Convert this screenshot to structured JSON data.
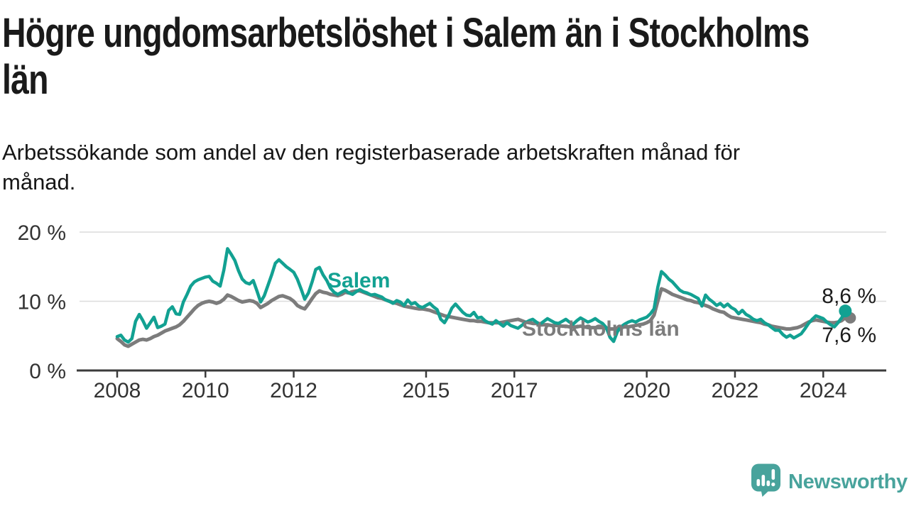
{
  "chart_data": {
    "type": "line",
    "title": "Högre ungdomsarbetslöshet i Salem än i Stockholms\nlän",
    "subtitle": "Arbetssökande som andel av den registerbaserade arbetskraften månad för\nmånad.",
    "x_unit": "month",
    "x_start": "2008-01",
    "x_end": "2024-07",
    "ylim": [
      0,
      21
    ],
    "grid": "horizontal",
    "legend_position": "inline-labels",
    "y_ticks": [
      {
        "v": 0,
        "label": "0 %"
      },
      {
        "v": 10,
        "label": "10 %"
      },
      {
        "v": 20,
        "label": "20 %"
      }
    ],
    "x_ticks": [
      {
        "year": 2008,
        "label": "2008"
      },
      {
        "year": 2010,
        "label": "2010"
      },
      {
        "year": 2012,
        "label": "2012"
      },
      {
        "year": 2015,
        "label": "2015"
      },
      {
        "year": 2017,
        "label": "2017"
      },
      {
        "year": 2020,
        "label": "2020"
      },
      {
        "year": 2022,
        "label": "2022"
      },
      {
        "year": 2024,
        "label": "2024"
      }
    ],
    "style": {
      "grid_color": "#dcdcdc",
      "axis_color": "#3b3b3b",
      "tick_label_color": "#333333",
      "background": "#ffffff"
    },
    "series": [
      {
        "name": "Salem",
        "color": "#12a192",
        "stroke_width": 4.5,
        "end_label": "8,6 %",
        "end_value": 8.6,
        "dot_dx": 0,
        "dot_r": 9,
        "values": [
          4.9,
          5.1,
          4.4,
          4.1,
          4.6,
          7.1,
          8.1,
          7.2,
          6.1,
          6.9,
          7.7,
          6.2,
          6.4,
          6.7,
          8.7,
          9.2,
          8.2,
          8.1,
          9.9,
          11.0,
          12.2,
          12.8,
          13.1,
          13.3,
          13.5,
          13.6,
          12.9,
          12.6,
          12.2,
          14.5,
          17.6,
          16.8,
          15.9,
          14.4,
          13.2,
          12.7,
          12.5,
          13.0,
          11.5,
          9.9,
          10.8,
          12.3,
          13.8,
          15.5,
          16.0,
          15.5,
          15.0,
          14.6,
          14.2,
          13.2,
          11.8,
          10.3,
          11.2,
          12.8,
          14.6,
          14.9,
          13.8,
          13.0,
          11.9,
          11.3,
          11.0,
          11.3,
          11.6,
          11.2,
          11.0,
          11.4,
          11.7,
          11.4,
          11.2,
          10.9,
          11.0,
          10.8,
          10.6,
          10.2,
          10.0,
          9.7,
          10.1,
          9.9,
          9.4,
          10.2,
          9.6,
          9.8,
          9.3,
          9.1,
          9.4,
          9.7,
          9.2,
          8.8,
          7.4,
          6.9,
          7.8,
          9.0,
          9.6,
          9.0,
          8.4,
          8.0,
          7.9,
          8.4,
          7.6,
          7.7,
          7.2,
          6.9,
          6.7,
          7.2,
          6.8,
          6.4,
          6.9,
          6.5,
          6.3,
          6.1,
          6.5,
          6.9,
          7.2,
          7.4,
          7.0,
          6.7,
          7.1,
          7.5,
          7.2,
          6.9,
          6.8,
          7.1,
          7.4,
          7.0,
          6.7,
          7.2,
          7.6,
          7.3,
          7.0,
          7.2,
          7.5,
          7.1,
          6.8,
          6.2,
          4.8,
          4.2,
          5.6,
          6.3,
          6.7,
          7.0,
          7.2,
          7.0,
          7.3,
          7.5,
          7.7,
          8.2,
          8.9,
          12.0,
          14.3,
          13.8,
          13.2,
          12.8,
          12.2,
          11.6,
          11.3,
          11.2,
          11.0,
          10.7,
          10.4,
          9.3,
          10.9,
          10.3,
          9.9,
          9.4,
          9.7,
          9.2,
          9.6,
          9.1,
          8.8,
          8.2,
          8.7,
          8.1,
          7.8,
          7.4,
          7.2,
          7.4,
          6.9,
          6.6,
          6.2,
          5.8,
          5.8,
          5.2,
          4.8,
          5.1,
          4.7,
          5.0,
          5.3,
          6.0,
          6.8,
          7.4,
          7.9,
          7.7,
          7.5,
          7.0,
          6.6,
          6.3,
          6.9,
          7.6,
          8.6
        ]
      },
      {
        "name": "Stockholms län",
        "color": "#7c7c7c",
        "stroke_width": 5,
        "end_label": "7,6 %",
        "end_value": 7.6,
        "dot_dx": 7,
        "dot_r": 8,
        "values": [
          4.6,
          4.2,
          3.7,
          3.5,
          3.8,
          4.1,
          4.4,
          4.5,
          4.4,
          4.6,
          4.9,
          5.1,
          5.4,
          5.7,
          5.9,
          6.1,
          6.3,
          6.6,
          7.1,
          7.7,
          8.3,
          8.9,
          9.4,
          9.7,
          9.9,
          10.0,
          9.9,
          9.7,
          9.9,
          10.3,
          10.9,
          10.7,
          10.4,
          10.1,
          9.9,
          10.0,
          10.1,
          10.0,
          9.7,
          9.1,
          9.4,
          9.7,
          10.1,
          10.4,
          10.7,
          10.8,
          10.6,
          10.4,
          10.0,
          9.4,
          9.1,
          8.9,
          9.6,
          10.4,
          11.1,
          11.5,
          11.3,
          11.2,
          11.0,
          10.9,
          10.8,
          11.0,
          11.3,
          11.2,
          11.4,
          11.5,
          11.5,
          11.3,
          11.1,
          10.9,
          10.7,
          10.5,
          10.4,
          10.2,
          10.0,
          9.8,
          9.7,
          9.5,
          9.3,
          9.2,
          9.1,
          9.0,
          8.9,
          8.9,
          8.8,
          8.7,
          8.5,
          8.3,
          8.1,
          7.9,
          7.8,
          7.7,
          7.6,
          7.5,
          7.4,
          7.3,
          7.2,
          7.2,
          7.1,
          7.1,
          7.0,
          6.9,
          6.9,
          6.9,
          6.9,
          7.0,
          7.1,
          7.2,
          7.3,
          7.4,
          7.2,
          7.0,
          6.9,
          6.8,
          6.8,
          6.7,
          6.6,
          6.6,
          6.5,
          6.5,
          6.5,
          6.4,
          6.4,
          6.3,
          6.3,
          6.3,
          6.4,
          6.3,
          6.2,
          6.2,
          6.2,
          6.2,
          6.2,
          6.1,
          6.0,
          6.0,
          6.1,
          6.2,
          6.3,
          6.3,
          6.4,
          6.5,
          6.6,
          6.7,
          6.9,
          7.2,
          8.0,
          10.0,
          11.8,
          11.6,
          11.3,
          11.0,
          10.8,
          10.6,
          10.4,
          10.2,
          10.1,
          9.9,
          9.8,
          9.6,
          9.4,
          9.2,
          8.9,
          8.7,
          8.5,
          8.4,
          8.0,
          7.7,
          7.6,
          7.5,
          7.4,
          7.3,
          7.2,
          7.1,
          7.0,
          6.9,
          6.7,
          6.6,
          6.4,
          6.3,
          6.2,
          6.1,
          6.0,
          6.0,
          6.1,
          6.2,
          6.4,
          6.7,
          7.0,
          7.2,
          7.3,
          7.2,
          7.1,
          7.0,
          6.9,
          6.9,
          7.0,
          7.2,
          7.6
        ]
      }
    ]
  },
  "branding": {
    "logo_text": "Newsworthy",
    "logo_icon": "newsworthy-chart-bubble-icon",
    "logo_color": "#48a39c"
  }
}
